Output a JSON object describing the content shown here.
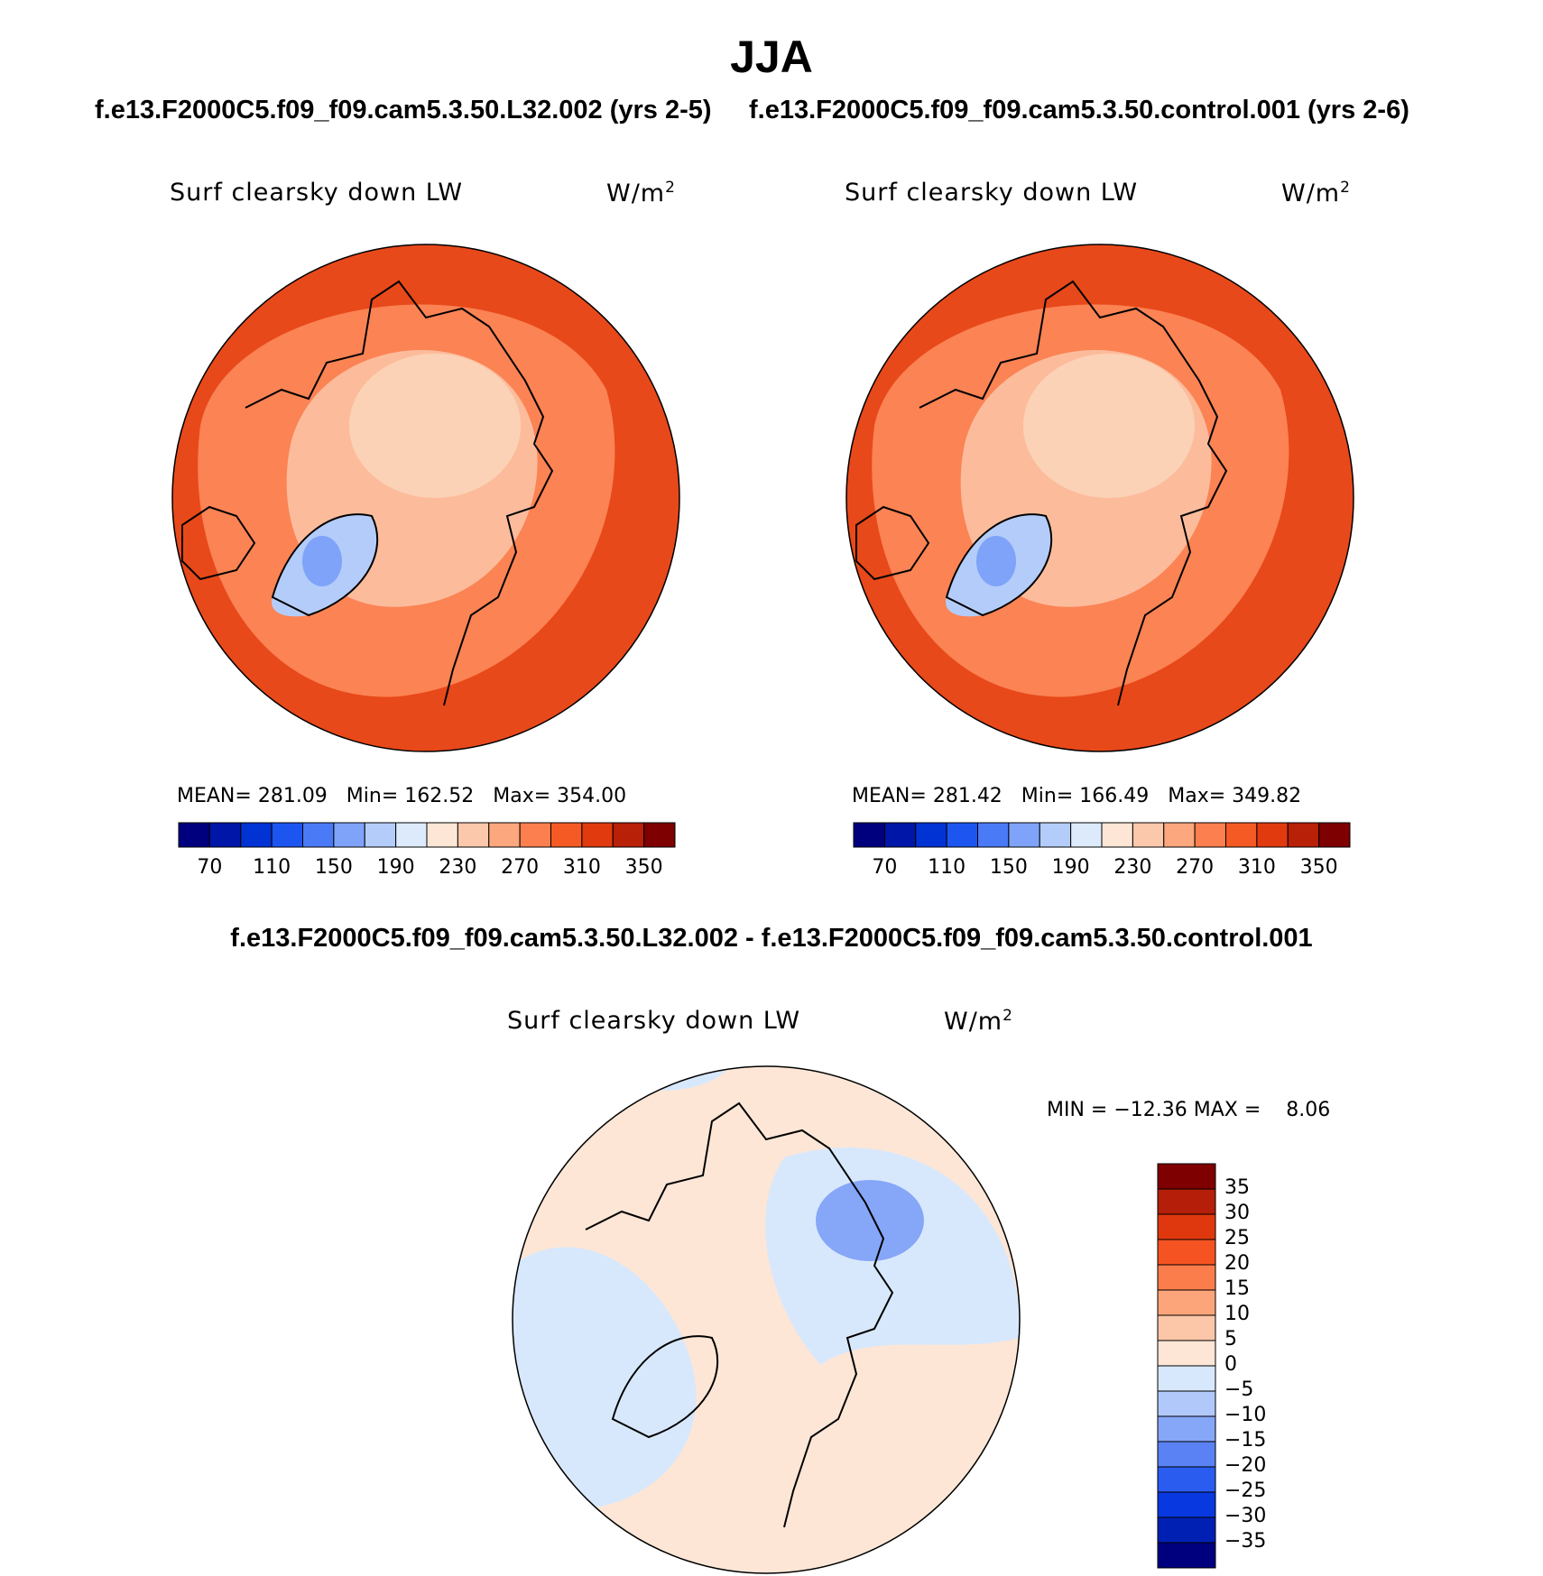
{
  "title": "JJA",
  "panels": [
    {
      "case_title": "f.e13.F2000C5.f09_f09.cam5.3.50.L32.002 (yrs 2-5)",
      "variable": "Surf clearsky down LW",
      "units": "W/m",
      "units_sup": "2",
      "stats": {
        "mean_label": "MEAN=",
        "mean": "281.09",
        "min_label": "Min=",
        "min": "162.52",
        "max_label": "Max=",
        "max": "354.00"
      }
    },
    {
      "case_title": "f.e13.F2000C5.f09_f09.cam5.3.50.control.001 (yrs 2-6)",
      "variable": "Surf clearsky down LW",
      "units": "W/m",
      "units_sup": "2",
      "stats": {
        "mean_label": "MEAN=",
        "mean": "281.42",
        "min_label": "Min=",
        "min": "166.49",
        "max_label": "Max=",
        "max": "349.82"
      }
    }
  ],
  "difference": {
    "title": "f.e13.F2000C5.f09_f09.cam5.3.50.L32.002 - f.e13.F2000C5.f09_f09.cam5.3.50.control.001",
    "variable": "Surf clearsky down LW",
    "units": "W/m",
    "units_sup": "2",
    "minmax": "MIN = −12.36 MAX =    8.06"
  },
  "colorbar_abs": {
    "colors": [
      "#00007f",
      "#0016a8",
      "#0032d4",
      "#1c55f0",
      "#4a7af5",
      "#7ea3f8",
      "#b4ccf9",
      "#dceafc",
      "#fde6d6",
      "#fcc8ac",
      "#fca77d",
      "#fb7f4f",
      "#f55a24",
      "#e03a0e",
      "#b92008",
      "#7f0000"
    ],
    "ticks": [
      "70",
      "110",
      "150",
      "190",
      "230",
      "270",
      "310",
      "350"
    ]
  },
  "colorbar_diff": {
    "colors": [
      "#00007f",
      "#0020b4",
      "#0838e0",
      "#2a5cf0",
      "#5a82f4",
      "#86a6f8",
      "#b0c8fa",
      "#d8e8fc",
      "#fde6d6",
      "#fcc6a8",
      "#fca57a",
      "#fb7d4c",
      "#f55322",
      "#e0380e",
      "#b51e08",
      "#7f0000"
    ],
    "ticks": [
      "35",
      "30",
      "25",
      "20",
      "15",
      "10",
      "5",
      "0",
      "−5",
      "−10",
      "−15",
      "−20",
      "−25",
      "−30",
      "−35"
    ]
  },
  "map_fill": {
    "outer": "#e8491a",
    "mid": "#fb8354",
    "inner": "#fcbc9c",
    "pole": "#fcd2b6",
    "greenland": "#b4ccf9",
    "greenland_core": "#7ea3f8",
    "diff_base": "#fde6d6",
    "diff_cool": "#d8e8fc",
    "diff_cool_strong": "#86a6f8"
  }
}
